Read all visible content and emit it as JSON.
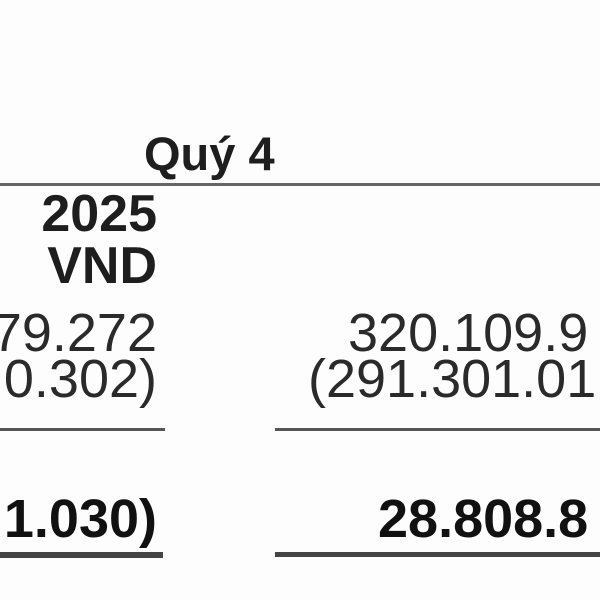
{
  "header": {
    "period": "Quý 4",
    "year": "2025",
    "currency": "VND"
  },
  "rows": [
    {
      "col1": "79.272",
      "col2": "320.109.9"
    },
    {
      "col1": "0.302)",
      "col2": "(291.301.01"
    },
    {
      "col1": "1.030)",
      "col2": "28.808.8"
    }
  ]
}
